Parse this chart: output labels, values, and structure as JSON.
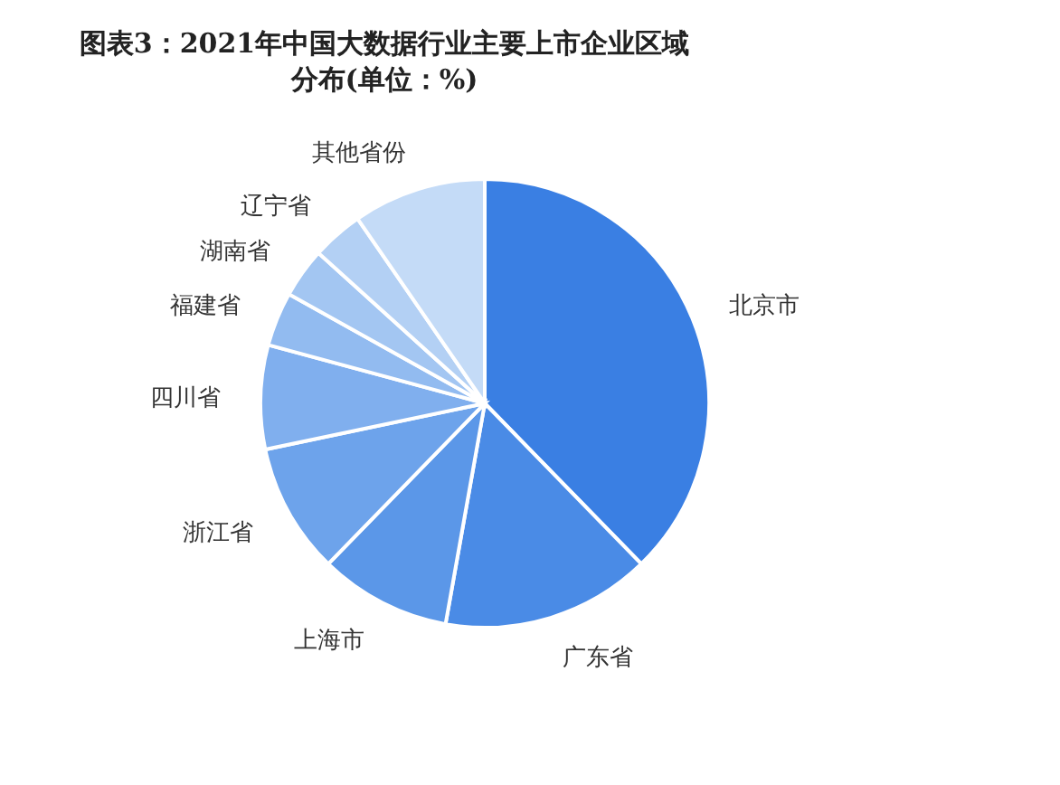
{
  "chart_data": {
    "type": "pie",
    "title": "图表3：2021年中国大数据行业主要上市企业区域分布(单位：%)",
    "categories": [
      "北京市",
      "广东省",
      "上海市",
      "浙江省",
      "四川省",
      "福建省",
      "湖南省",
      "辽宁省",
      "其他省份"
    ],
    "values": [
      37.7,
      15.1,
      9.5,
      9.4,
      7.5,
      3.9,
      3.6,
      3.7,
      9.6
    ],
    "colors": [
      "#3a7fe3",
      "#4a8be6",
      "#5b97e8",
      "#6da3eb",
      "#80afee",
      "#92bbf0",
      "#a3c6f2",
      "#b3d0f4",
      "#c4dbf7"
    ],
    "legend": false
  }
}
